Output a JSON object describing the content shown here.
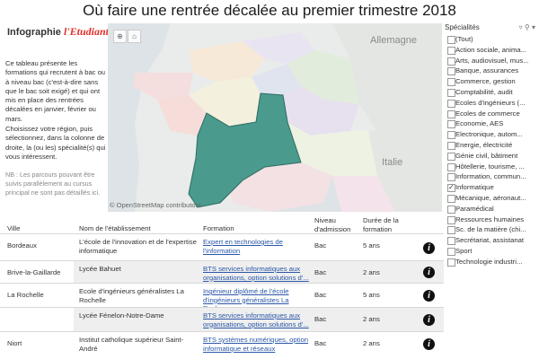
{
  "page": {
    "title": "Où faire une rentrée décalée au premier trimestre 2018"
  },
  "brand": {
    "prefix": "Infographie",
    "logo": "l'Etudiant"
  },
  "intro": {
    "paragraph1": "Ce tableau présente les formations qui recrutent à bac ou à niveau bac (c'est-à-dire sans que le bac soit exigé) et qui ont mis en place des rentrées décalées en janvier, février ou mars.",
    "paragraph2": "Choisissez votre région, puis sélectionnez, dans la colonne de droite, la (ou les) spécialité(s) qui vous intéressent."
  },
  "note": "NB : Les parcours pouvant être suivis parallèlement au cursus principal ne sont pas détaillés ici.",
  "map": {
    "credit": "© OpenStreetMap contributors",
    "labels": {
      "allemagne": "Allemagne",
      "italie": "Italie"
    },
    "colors": {
      "selected_region": "#4a9a8d",
      "background": "#e9ecea"
    }
  },
  "filter": {
    "title": "Spécialités",
    "items": [
      {
        "label": "(Tout)",
        "checked": false
      },
      {
        "label": "Action sociale, anima...",
        "checked": false
      },
      {
        "label": "Arts, audiovisuel, mus...",
        "checked": false
      },
      {
        "label": "Banque, assurances",
        "checked": false
      },
      {
        "label": "Commerce, gestion",
        "checked": false
      },
      {
        "label": "Comptabilité, audit",
        "checked": false
      },
      {
        "label": "Ecoles d'ingénieurs (...",
        "checked": false
      },
      {
        "label": "Ecoles de commerce",
        "checked": false
      },
      {
        "label": "Economie, AES",
        "checked": false
      },
      {
        "label": "Electronique, autom...",
        "checked": false
      },
      {
        "label": "Energie, électricité",
        "checked": false
      },
      {
        "label": "Génie civil, bâtiment",
        "checked": false
      },
      {
        "label": "Hôtellerie, tourisme, ...",
        "checked": false
      },
      {
        "label": "Information, commun...",
        "checked": false
      },
      {
        "label": "Informatique",
        "checked": true
      },
      {
        "label": "Mécanique, aéronaut...",
        "checked": false
      },
      {
        "label": "Paramédical",
        "checked": false
      },
      {
        "label": "Ressources humaines",
        "checked": false
      },
      {
        "label": "Sc. de la matière (chi...",
        "checked": false
      },
      {
        "label": "Secrétariat, assistanat",
        "checked": false
      },
      {
        "label": "Sport",
        "checked": false
      },
      {
        "label": "Technologie industri...",
        "checked": false
      }
    ]
  },
  "table": {
    "headers": {
      "ville": "Ville",
      "etablissement": "Nom de l'établissement",
      "formation": "Formation",
      "niveau": "Niveau d'admission",
      "duree": "Durée de la formation"
    },
    "rows": [
      {
        "ville": "Bordeaux",
        "etablissement": "L'école de l'innovation et de l'expertise informatique",
        "formation": "Expert en technologies de l'information",
        "niveau": "Bac",
        "duree": "5 ans"
      },
      {
        "ville": "Brive-la-Gaillarde",
        "etablissement": "Lycée Bahuet",
        "formation": "BTS services informatiques aux organisations, option solutions d'...",
        "niveau": "Bac",
        "duree": "2 ans"
      },
      {
        "ville": "La Rochelle",
        "etablissement": "Ecole d'ingénieurs généralistes La Rochelle",
        "formation": "Ingénieur diplômé de l'école d'ingénieurs généralistes La Roch...",
        "niveau": "Bac",
        "duree": "5 ans"
      },
      {
        "ville": "",
        "etablissement": "Lycée Fénelon-Notre-Dame",
        "formation": "BTS services informatiques aux organisations, option solutions d'...",
        "niveau": "Bac",
        "duree": "2 ans"
      },
      {
        "ville": "Niort",
        "etablissement": "Institut catholique supérieur Saint-André",
        "formation": "BTS systèmes numériques, option informatique et réseaux",
        "niveau": "Bac",
        "duree": "2 ans"
      }
    ]
  }
}
